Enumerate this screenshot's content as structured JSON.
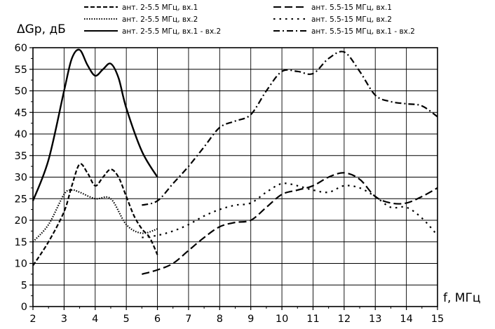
{
  "chart_data": {
    "type": "line",
    "title": "",
    "xlabel": "f, МГц",
    "ylabel": "ΔGp, дБ",
    "xlim": [
      2,
      15
    ],
    "ylim": [
      0,
      60
    ],
    "xticks": [
      2,
      3,
      4,
      5,
      6,
      7,
      8,
      9,
      10,
      11,
      12,
      13,
      14,
      15
    ],
    "yticks": [
      0,
      5,
      10,
      15,
      20,
      25,
      30,
      35,
      40,
      45,
      50,
      55,
      60
    ],
    "grid": true,
    "legend_position": "top",
    "series": [
      {
        "name": "ант. 2-5.5 МГц, вх.1",
        "style": "dashed-short",
        "x": [
          2,
          2.5,
          3,
          3.25,
          3.5,
          3.75,
          4,
          4.25,
          4.5,
          4.75,
          5,
          5.25,
          5.5,
          5.75,
          6
        ],
        "y": [
          9.5,
          15,
          22,
          28,
          33,
          31,
          28,
          30,
          31.8,
          30,
          25.5,
          21,
          18,
          16,
          12
        ]
      },
      {
        "name": "ант. 2-5.5 МГц, вх.2",
        "style": "dotted",
        "x": [
          2,
          2.5,
          3,
          3.25,
          3.5,
          4,
          4.5,
          5,
          5.5,
          6
        ],
        "y": [
          15,
          19,
          26,
          27,
          26.5,
          25,
          25,
          19,
          17,
          18
        ]
      },
      {
        "name": "ант. 2-5.5 МГц, вх.1 - вх.2",
        "style": "solid",
        "x": [
          2,
          2.5,
          3,
          3.25,
          3.5,
          3.75,
          4,
          4.25,
          4.5,
          4.75,
          5,
          5.5,
          6
        ],
        "y": [
          24.5,
          34,
          50,
          57.5,
          59.5,
          56,
          53.5,
          55,
          56.3,
          53,
          46,
          36,
          30
        ]
      },
      {
        "name": "ант. 5.5-15 МГц, вх.1",
        "style": "dashed-long",
        "x": [
          5.5,
          6,
          6.5,
          7,
          7.5,
          8,
          8.5,
          9,
          9.5,
          10,
          10.5,
          11,
          11.5,
          12,
          12.5,
          13,
          13.5,
          14,
          14.5,
          15
        ],
        "y": [
          7.5,
          8.5,
          10,
          13,
          16,
          18.5,
          19.5,
          20,
          23,
          26,
          27,
          28,
          30,
          31,
          29.5,
          25.5,
          24,
          24,
          25.5,
          27.5
        ]
      },
      {
        "name": "ант. 5.5-15 МГц, вх.2",
        "style": "dashed-sparse",
        "x": [
          5.5,
          6,
          6.5,
          7,
          7.5,
          8,
          8.5,
          9,
          9.5,
          10,
          10.5,
          11,
          11.5,
          12,
          12.5,
          13,
          13.5,
          14,
          14.5,
          15
        ],
        "y": [
          16,
          16.5,
          17.5,
          19,
          21,
          22.5,
          23.5,
          24,
          26.5,
          28.5,
          28,
          27,
          26.5,
          28,
          27.5,
          25.5,
          23,
          23,
          20.5,
          16.5
        ]
      },
      {
        "name": "ант. 5.5-15 МГц, вх.1 - вх.2",
        "style": "dashdot",
        "x": [
          5.5,
          6,
          6.5,
          7,
          7.5,
          8,
          8.5,
          9,
          9.5,
          10,
          10.5,
          11,
          11.5,
          12,
          12.5,
          13,
          13.5,
          14,
          14.5,
          15
        ],
        "y": [
          23.5,
          24.5,
          28.5,
          32.5,
          37,
          41.5,
          43,
          44.5,
          50,
          54.5,
          54.5,
          54,
          57.5,
          59,
          54.5,
          49,
          47.5,
          47,
          46.5,
          44
        ]
      }
    ]
  }
}
